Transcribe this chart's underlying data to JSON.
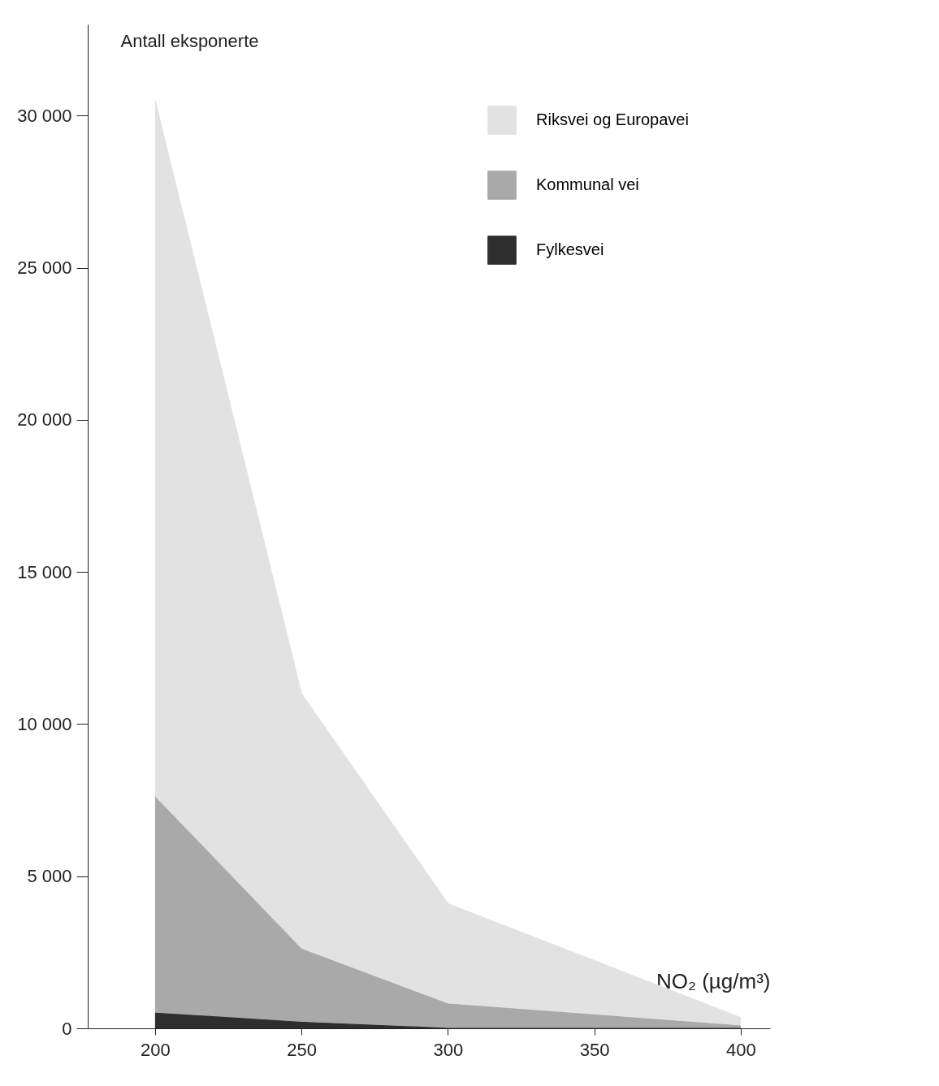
{
  "chart_data": {
    "type": "area",
    "ylabel": "Antall eksponerte",
    "xlabel": "NO₂ (µg/m³)",
    "x": [
      200,
      250,
      300,
      400
    ],
    "series": [
      {
        "name": "Riksvei og Europavei",
        "color": "#e2e2e2",
        "values": [
          30500,
          11000,
          4100,
          350
        ]
      },
      {
        "name": "Kommunal vei",
        "color": "#a9a9a9",
        "values": [
          7600,
          2600,
          800,
          80
        ]
      },
      {
        "name": "Fylkesvei",
        "color": "#2e2e2e",
        "values": [
          500,
          200,
          0,
          0
        ]
      }
    ],
    "xlim": [
      177,
      410
    ],
    "xticks": [
      200,
      250,
      300,
      350,
      400
    ],
    "ylim": [
      0,
      33000
    ],
    "yticks": [
      {
        "value": 0,
        "label": "0"
      },
      {
        "value": 5000,
        "label": "5 000"
      },
      {
        "value": 10000,
        "label": "10 000"
      },
      {
        "value": 15000,
        "label": "15 000"
      },
      {
        "value": 20000,
        "label": "20 000"
      },
      {
        "value": 25000,
        "label": "25 000"
      },
      {
        "value": 30000,
        "label": "30 000"
      }
    ],
    "grid": false,
    "legend": "top right"
  }
}
